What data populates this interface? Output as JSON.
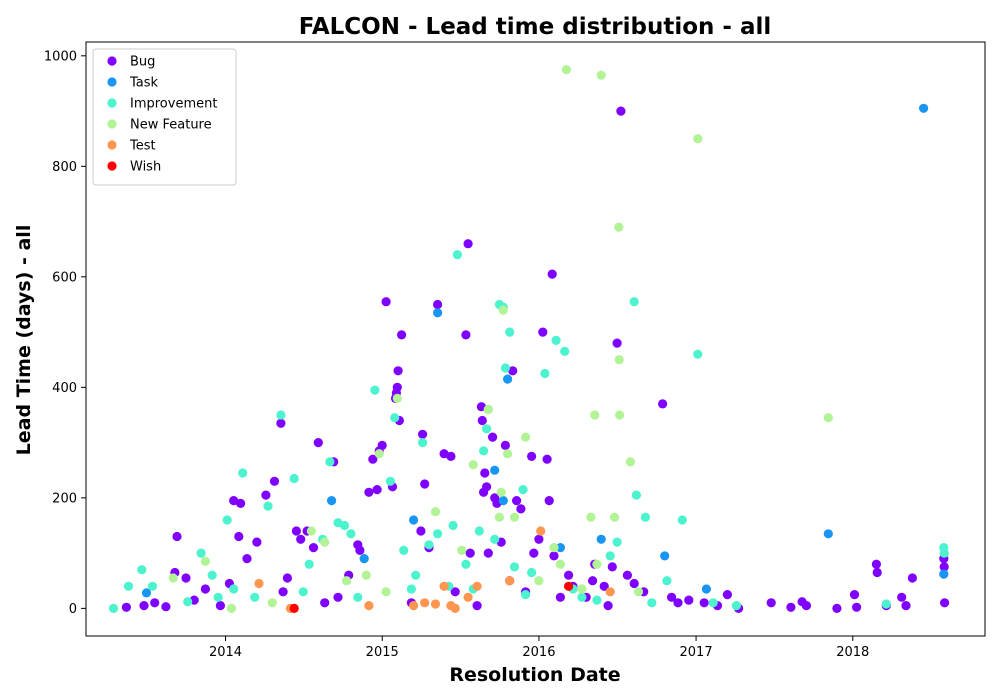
{
  "chart_data": {
    "type": "scatter",
    "title": "FALCON - Lead time distribution - all",
    "xlabel": "Resolution Date",
    "ylabel": "Lead Time (days) - all",
    "x_type": "date",
    "xlim": [
      "2013-02-10",
      "2018-11-05"
    ],
    "ylim": [
      -50,
      1025
    ],
    "x_ticks": [
      {
        "date": "2014-01-01",
        "label": "2014"
      },
      {
        "date": "2015-01-01",
        "label": "2015"
      },
      {
        "date": "2016-01-01",
        "label": "2016"
      },
      {
        "date": "2017-01-01",
        "label": "2017"
      },
      {
        "date": "2018-01-01",
        "label": "2018"
      }
    ],
    "y_ticks": [
      0,
      200,
      400,
      600,
      800,
      1000
    ],
    "grid": false,
    "legend_position": "top-left",
    "series": [
      {
        "name": "Bug",
        "color": "#8000ff",
        "points": [
          [
            "2013-05-15",
            2
          ],
          [
            "2013-06-25",
            5
          ],
          [
            "2013-07-20",
            10
          ],
          [
            "2013-08-15",
            3
          ],
          [
            "2013-09-10",
            130
          ],
          [
            "2013-09-05",
            65
          ],
          [
            "2013-10-01",
            55
          ],
          [
            "2013-10-20",
            15
          ],
          [
            "2013-11-15",
            35
          ],
          [
            "2013-12-20",
            5
          ],
          [
            "2014-01-10",
            45
          ],
          [
            "2014-01-20",
            195
          ],
          [
            "2014-02-01",
            130
          ],
          [
            "2014-02-05",
            190
          ],
          [
            "2014-02-20",
            90
          ],
          [
            "2014-03-15",
            120
          ],
          [
            "2014-04-05",
            205
          ],
          [
            "2014-04-25",
            230
          ],
          [
            "2014-05-10",
            335
          ],
          [
            "2014-05-15",
            30
          ],
          [
            "2014-05-25",
            55
          ],
          [
            "2014-06-15",
            140
          ],
          [
            "2014-06-25",
            125
          ],
          [
            "2014-07-10",
            140
          ],
          [
            "2014-07-25",
            110
          ],
          [
            "2014-08-05",
            300
          ],
          [
            "2014-08-20",
            10
          ],
          [
            "2014-09-10",
            265
          ],
          [
            "2014-09-20",
            20
          ],
          [
            "2014-10-15",
            60
          ],
          [
            "2014-11-05",
            115
          ],
          [
            "2014-11-10",
            105
          ],
          [
            "2014-12-01",
            210
          ],
          [
            "2014-12-10",
            270
          ],
          [
            "2014-12-20",
            215
          ],
          [
            "2014-12-25",
            285
          ],
          [
            "2015-01-01",
            295
          ],
          [
            "2015-01-10",
            555
          ],
          [
            "2015-01-25",
            220
          ],
          [
            "2015-02-01",
            380
          ],
          [
            "2015-02-03",
            390
          ],
          [
            "2015-02-05",
            400
          ],
          [
            "2015-02-07",
            430
          ],
          [
            "2015-02-10",
            340
          ],
          [
            "2015-02-15",
            495
          ],
          [
            "2015-03-10",
            10
          ],
          [
            "2015-04-01",
            140
          ],
          [
            "2015-04-05",
            315
          ],
          [
            "2015-04-10",
            225
          ],
          [
            "2015-04-20",
            110
          ],
          [
            "2015-05-10",
            550
          ],
          [
            "2015-05-25",
            280
          ],
          [
            "2015-06-10",
            275
          ],
          [
            "2015-06-20",
            30
          ],
          [
            "2015-07-15",
            495
          ],
          [
            "2015-07-20",
            660
          ],
          [
            "2015-07-25",
            100
          ],
          [
            "2015-08-10",
            5
          ],
          [
            "2015-08-20",
            365
          ],
          [
            "2015-08-22",
            340
          ],
          [
            "2015-08-25",
            210
          ],
          [
            "2015-08-28",
            245
          ],
          [
            "2015-09-01",
            220
          ],
          [
            "2015-09-05",
            100
          ],
          [
            "2015-09-15",
            310
          ],
          [
            "2015-09-20",
            200
          ],
          [
            "2015-09-25",
            190
          ],
          [
            "2015-10-05",
            120
          ],
          [
            "2015-10-15",
            295
          ],
          [
            "2015-10-25",
            50
          ],
          [
            "2015-11-01",
            430
          ],
          [
            "2015-11-10",
            195
          ],
          [
            "2015-11-20",
            180
          ],
          [
            "2015-12-01",
            30
          ],
          [
            "2015-12-15",
            275
          ],
          [
            "2015-12-20",
            100
          ],
          [
            "2016-01-01",
            125
          ],
          [
            "2016-01-10",
            500
          ],
          [
            "2016-01-20",
            270
          ],
          [
            "2016-01-25",
            195
          ],
          [
            "2016-02-01",
            605
          ],
          [
            "2016-02-05",
            95
          ],
          [
            "2016-02-20",
            20
          ],
          [
            "2016-03-10",
            60
          ],
          [
            "2016-03-20",
            40
          ],
          [
            "2016-04-20",
            20
          ],
          [
            "2016-05-05",
            50
          ],
          [
            "2016-05-10",
            80
          ],
          [
            "2016-06-01",
            40
          ],
          [
            "2016-06-10",
            5
          ],
          [
            "2016-06-20",
            75
          ],
          [
            "2016-07-01",
            480
          ],
          [
            "2016-07-10",
            900
          ],
          [
            "2016-07-25",
            60
          ],
          [
            "2016-08-10",
            45
          ],
          [
            "2016-09-01",
            30
          ],
          [
            "2016-10-15",
            370
          ],
          [
            "2016-11-05",
            20
          ],
          [
            "2016-11-20",
            10
          ],
          [
            "2016-12-15",
            15
          ],
          [
            "2017-01-20",
            10
          ],
          [
            "2017-02-20",
            5
          ],
          [
            "2017-03-15",
            25
          ],
          [
            "2017-04-10",
            0
          ],
          [
            "2017-06-25",
            10
          ],
          [
            "2017-08-10",
            2
          ],
          [
            "2017-09-05",
            12
          ],
          [
            "2017-09-15",
            5
          ],
          [
            "2017-11-25",
            0
          ],
          [
            "2018-01-05",
            25
          ],
          [
            "2018-01-10",
            2
          ],
          [
            "2018-02-25",
            80
          ],
          [
            "2018-02-27",
            65
          ],
          [
            "2018-03-20",
            5
          ],
          [
            "2018-04-25",
            20
          ],
          [
            "2018-05-05",
            5
          ],
          [
            "2018-05-20",
            55
          ],
          [
            "2018-08-01",
            90
          ],
          [
            "2018-08-02",
            75
          ],
          [
            "2018-08-03",
            10
          ]
        ]
      },
      {
        "name": "Task",
        "color": "#1996f3",
        "points": [
          [
            "2013-07-01",
            28
          ],
          [
            "2014-09-05",
            195
          ],
          [
            "2014-11-20",
            90
          ],
          [
            "2015-03-15",
            160
          ],
          [
            "2015-05-10",
            535
          ],
          [
            "2015-09-20",
            250
          ],
          [
            "2015-10-10",
            195
          ],
          [
            "2015-10-20",
            415
          ],
          [
            "2016-02-20",
            110
          ],
          [
            "2016-05-25",
            125
          ],
          [
            "2016-10-20",
            95
          ],
          [
            "2017-01-25",
            35
          ],
          [
            "2017-11-05",
            135
          ],
          [
            "2018-06-15",
            905
          ],
          [
            "2018-08-01",
            62
          ]
        ]
      },
      {
        "name": "Improvement",
        "color": "#4df3ce",
        "points": [
          [
            "2013-04-15",
            0
          ],
          [
            "2013-05-20",
            40
          ],
          [
            "2013-06-20",
            70
          ],
          [
            "2013-07-15",
            40
          ],
          [
            "2013-10-05",
            12
          ],
          [
            "2013-11-05",
            100
          ],
          [
            "2013-12-15",
            20
          ],
          [
            "2014-01-05",
            160
          ],
          [
            "2014-01-20",
            35
          ],
          [
            "2014-02-10",
            245
          ],
          [
            "2014-04-10",
            185
          ],
          [
            "2014-05-10",
            350
          ],
          [
            "2014-06-10",
            235
          ],
          [
            "2014-07-15",
            80
          ],
          [
            "2014-08-15",
            125
          ],
          [
            "2014-09-01",
            265
          ],
          [
            "2014-09-20",
            155
          ],
          [
            "2014-10-05",
            150
          ],
          [
            "2014-10-20",
            135
          ],
          [
            "2014-11-05",
            20
          ],
          [
            "2014-12-15",
            395
          ],
          [
            "2015-01-20",
            230
          ],
          [
            "2015-01-30",
            345
          ],
          [
            "2015-02-20",
            105
          ],
          [
            "2015-03-20",
            60
          ],
          [
            "2015-04-05",
            300
          ],
          [
            "2015-04-20",
            115
          ],
          [
            "2015-05-10",
            135
          ],
          [
            "2015-06-15",
            150
          ],
          [
            "2015-06-25",
            640
          ],
          [
            "2015-07-15",
            80
          ],
          [
            "2015-08-01",
            35
          ],
          [
            "2015-08-15",
            140
          ],
          [
            "2015-08-25",
            285
          ],
          [
            "2015-09-01",
            325
          ],
          [
            "2015-09-05",
            360
          ],
          [
            "2015-09-20",
            125
          ],
          [
            "2015-10-01",
            550
          ],
          [
            "2015-10-10",
            545
          ],
          [
            "2015-10-25",
            500
          ],
          [
            "2015-10-15",
            435
          ],
          [
            "2015-11-05",
            75
          ],
          [
            "2015-11-25",
            215
          ],
          [
            "2015-12-15",
            65
          ],
          [
            "2016-01-15",
            425
          ],
          [
            "2016-02-10",
            485
          ],
          [
            "2016-03-01",
            465
          ],
          [
            "2016-03-20",
            35
          ],
          [
            "2016-04-10",
            20
          ],
          [
            "2016-06-15",
            95
          ],
          [
            "2016-07-01",
            120
          ],
          [
            "2016-08-10",
            555
          ],
          [
            "2016-08-15",
            205
          ],
          [
            "2016-09-05",
            165
          ],
          [
            "2016-10-25",
            50
          ],
          [
            "2016-11-30",
            160
          ],
          [
            "2017-01-05",
            460
          ],
          [
            "2017-02-10",
            10
          ],
          [
            "2017-04-05",
            5
          ],
          [
            "2018-03-20",
            8
          ],
          [
            "2018-08-01",
            110
          ],
          [
            "2018-08-02",
            100
          ],
          [
            "2015-03-10",
            35
          ],
          [
            "2015-06-05",
            40
          ],
          [
            "2016-05-15",
            15
          ],
          [
            "2014-03-10",
            20
          ],
          [
            "2014-07-01",
            30
          ],
          [
            "2013-12-01",
            60
          ],
          [
            "2016-09-20",
            10
          ],
          [
            "2015-12-01",
            25
          ]
        ]
      },
      {
        "name": "New Feature",
        "color": "#b2f396",
        "points": [
          [
            "2013-09-01",
            55
          ],
          [
            "2013-11-15",
            85
          ],
          [
            "2014-04-20",
            10
          ],
          [
            "2014-07-20",
            140
          ],
          [
            "2014-08-20",
            120
          ],
          [
            "2014-10-10",
            50
          ],
          [
            "2014-12-25",
            280
          ],
          [
            "2015-02-05",
            380
          ],
          [
            "2015-05-05",
            175
          ],
          [
            "2015-07-05",
            105
          ],
          [
            "2015-08-01",
            260
          ],
          [
            "2015-09-05",
            360
          ],
          [
            "2015-10-01",
            165
          ],
          [
            "2015-10-05",
            210
          ],
          [
            "2015-10-10",
            540
          ],
          [
            "2015-10-20",
            280
          ],
          [
            "2015-11-05",
            165
          ],
          [
            "2015-12-01",
            310
          ],
          [
            "2016-01-01",
            50
          ],
          [
            "2016-02-05",
            110
          ],
          [
            "2016-02-20",
            80
          ],
          [
            "2016-03-05",
            975
          ],
          [
            "2016-05-01",
            165
          ],
          [
            "2016-05-10",
            350
          ],
          [
            "2016-05-15",
            80
          ],
          [
            "2016-05-25",
            965
          ],
          [
            "2016-06-25",
            165
          ],
          [
            "2016-07-05",
            690
          ],
          [
            "2016-07-06",
            450
          ],
          [
            "2016-07-07",
            350
          ],
          [
            "2016-08-01",
            265
          ],
          [
            "2016-08-20",
            30
          ],
          [
            "2017-01-05",
            850
          ],
          [
            "2017-11-05",
            345
          ],
          [
            "2014-11-25",
            60
          ],
          [
            "2015-01-10",
            30
          ],
          [
            "2016-04-10",
            35
          ],
          [
            "2014-01-15",
            0
          ]
        ]
      },
      {
        "name": "Test",
        "color": "#ff964f",
        "points": [
          [
            "2014-03-20",
            45
          ],
          [
            "2014-06-01",
            0
          ],
          [
            "2014-12-01",
            5
          ],
          [
            "2015-03-15",
            5
          ],
          [
            "2015-05-05",
            8
          ],
          [
            "2015-05-25",
            40
          ],
          [
            "2015-06-10",
            5
          ],
          [
            "2015-06-20",
            0
          ],
          [
            "2015-07-20",
            20
          ],
          [
            "2015-08-10",
            40
          ],
          [
            "2015-10-25",
            50
          ],
          [
            "2016-01-05",
            140
          ],
          [
            "2016-06-15",
            30
          ],
          [
            "2015-04-10",
            10
          ]
        ]
      },
      {
        "name": "Wish",
        "color": "#ff0000",
        "points": [
          [
            "2014-06-10",
            0
          ],
          [
            "2016-03-10",
            40
          ]
        ]
      }
    ]
  }
}
